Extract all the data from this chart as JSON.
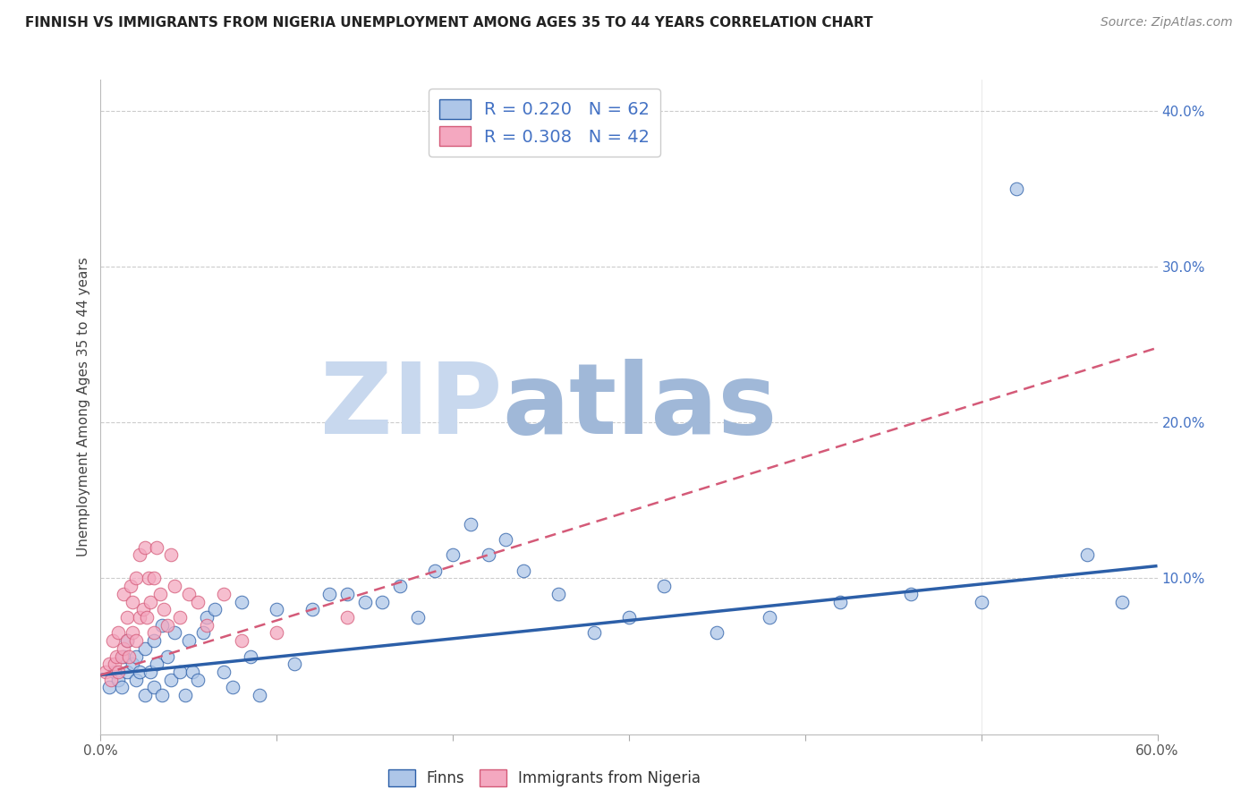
{
  "title": "FINNISH VS IMMIGRANTS FROM NIGERIA UNEMPLOYMENT AMONG AGES 35 TO 44 YEARS CORRELATION CHART",
  "source": "Source: ZipAtlas.com",
  "ylabel": "Unemployment Among Ages 35 to 44 years",
  "xlim": [
    0.0,
    0.6
  ],
  "ylim": [
    0.0,
    0.42
  ],
  "finns_R": 0.22,
  "finns_N": 62,
  "nigeria_R": 0.308,
  "nigeria_N": 42,
  "finns_color": "#aec6e8",
  "nigeria_color": "#f4a8c0",
  "finns_line_color": "#2c5fa8",
  "nigeria_line_color": "#d45a78",
  "watermark_zip_color": "#c8d8ee",
  "watermark_atlas_color": "#a0b8d8",
  "finns_x": [
    0.005,
    0.008,
    0.01,
    0.012,
    0.013,
    0.015,
    0.015,
    0.018,
    0.02,
    0.02,
    0.022,
    0.025,
    0.025,
    0.028,
    0.03,
    0.03,
    0.032,
    0.035,
    0.035,
    0.038,
    0.04,
    0.042,
    0.045,
    0.048,
    0.05,
    0.052,
    0.055,
    0.058,
    0.06,
    0.065,
    0.07,
    0.075,
    0.08,
    0.085,
    0.09,
    0.1,
    0.11,
    0.12,
    0.13,
    0.14,
    0.15,
    0.16,
    0.17,
    0.18,
    0.19,
    0.2,
    0.21,
    0.22,
    0.23,
    0.24,
    0.26,
    0.28,
    0.3,
    0.32,
    0.35,
    0.38,
    0.42,
    0.46,
    0.5,
    0.52,
    0.56,
    0.58
  ],
  "finns_y": [
    0.03,
    0.04,
    0.035,
    0.03,
    0.05,
    0.04,
    0.06,
    0.045,
    0.035,
    0.05,
    0.04,
    0.025,
    0.055,
    0.04,
    0.03,
    0.06,
    0.045,
    0.025,
    0.07,
    0.05,
    0.035,
    0.065,
    0.04,
    0.025,
    0.06,
    0.04,
    0.035,
    0.065,
    0.075,
    0.08,
    0.04,
    0.03,
    0.085,
    0.05,
    0.025,
    0.08,
    0.045,
    0.08,
    0.09,
    0.09,
    0.085,
    0.085,
    0.095,
    0.075,
    0.105,
    0.115,
    0.135,
    0.115,
    0.125,
    0.105,
    0.09,
    0.065,
    0.075,
    0.095,
    0.065,
    0.075,
    0.085,
    0.09,
    0.085,
    0.35,
    0.115,
    0.085
  ],
  "nigeria_x": [
    0.003,
    0.005,
    0.006,
    0.007,
    0.008,
    0.009,
    0.01,
    0.01,
    0.012,
    0.013,
    0.013,
    0.015,
    0.015,
    0.016,
    0.017,
    0.018,
    0.018,
    0.02,
    0.02,
    0.022,
    0.022,
    0.024,
    0.025,
    0.026,
    0.027,
    0.028,
    0.03,
    0.03,
    0.032,
    0.034,
    0.036,
    0.038,
    0.04,
    0.042,
    0.045,
    0.05,
    0.055,
    0.06,
    0.07,
    0.08,
    0.1,
    0.14
  ],
  "nigeria_y": [
    0.04,
    0.045,
    0.035,
    0.06,
    0.045,
    0.05,
    0.04,
    0.065,
    0.05,
    0.055,
    0.09,
    0.06,
    0.075,
    0.05,
    0.095,
    0.065,
    0.085,
    0.06,
    0.1,
    0.075,
    0.115,
    0.08,
    0.12,
    0.075,
    0.1,
    0.085,
    0.065,
    0.1,
    0.12,
    0.09,
    0.08,
    0.07,
    0.115,
    0.095,
    0.075,
    0.09,
    0.085,
    0.07,
    0.09,
    0.06,
    0.065,
    0.075
  ],
  "finns_trend_x": [
    0.0,
    0.6
  ],
  "finns_trend_y": [
    0.038,
    0.108
  ],
  "nigeria_trend_x": [
    0.0,
    0.6
  ],
  "nigeria_trend_y": [
    0.038,
    0.248
  ]
}
